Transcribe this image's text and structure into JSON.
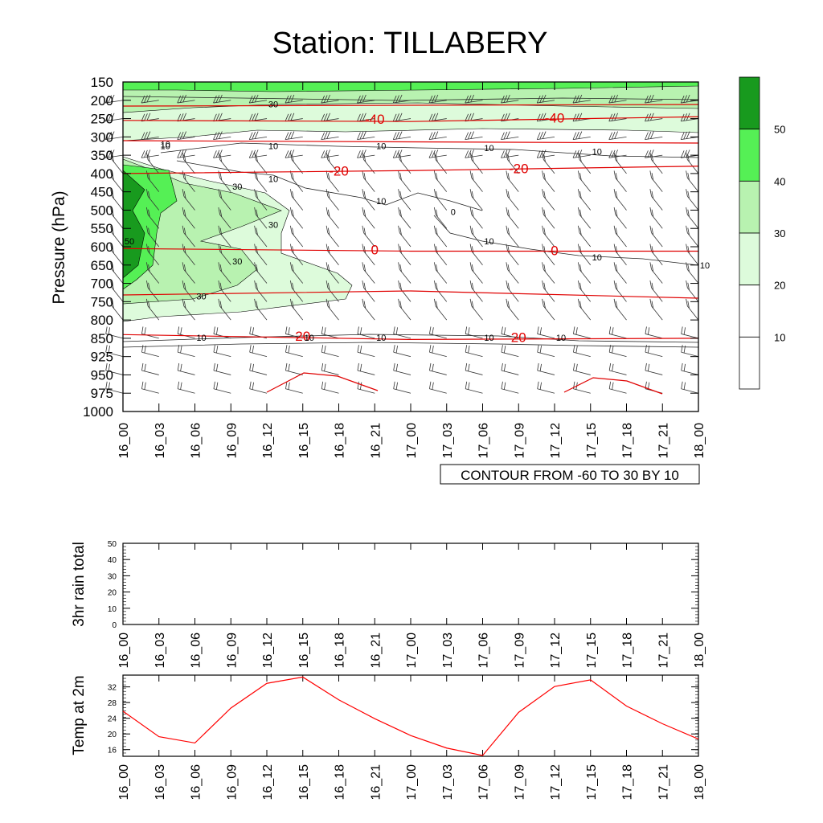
{
  "title": "Station: TILLABERY",
  "chart_data": [
    {
      "type": "heatmap",
      "panel": "cross-section",
      "ylabel": "Pressure (hPa)",
      "y_levels": [
        "150",
        "200",
        "250",
        "300",
        "350",
        "400",
        "450",
        "500",
        "550",
        "600",
        "650",
        "700",
        "750",
        "800",
        "850",
        "925",
        "950",
        "975",
        "1000"
      ],
      "x_categories": [
        "16_00",
        "16_03",
        "16_06",
        "16_09",
        "16_12",
        "16_15",
        "16_18",
        "16_21",
        "17_00",
        "17_03",
        "17_06",
        "17_09",
        "17_12",
        "17_15",
        "17_18",
        "17_21",
        "18_00"
      ],
      "contour_info": "CONTOUR FROM -60 TO 30 BY 10",
      "fill_colorbar": {
        "labels": [
          "10",
          "20",
          "30",
          "40",
          "50"
        ],
        "colors": [
          "#ffffff",
          "#ffffff",
          "#ddfbdb",
          "#b8f2b0",
          "#55f055",
          "#189a1e"
        ]
      },
      "shaded_contour_labels": [
        {
          "text": "30",
          "x": "16_12",
          "p": 210
        },
        {
          "text": "10",
          "x": "16_03",
          "p": 320
        },
        {
          "text": "10",
          "x": "16_03",
          "p": 325
        },
        {
          "text": "10",
          "x": "16_12",
          "p": 325
        },
        {
          "text": "10",
          "x": "16_21",
          "p": 325
        },
        {
          "text": "10",
          "x": "17_06",
          "p": 330
        },
        {
          "text": "10",
          "x": "17_15",
          "p": 340
        },
        {
          "text": "10",
          "x": "16_12",
          "p": 415
        },
        {
          "text": "30",
          "x": "16_09",
          "p": 435
        },
        {
          "text": "10",
          "x": "16_21",
          "p": 475
        },
        {
          "text": "0",
          "x": "17_03",
          "p": 505
        },
        {
          "text": "30",
          "x": "16_12",
          "p": 540
        },
        {
          "text": "50",
          "x": "16_00",
          "p": 585
        },
        {
          "text": "10",
          "x": "17_06",
          "p": 585
        },
        {
          "text": "30",
          "x": "16_09",
          "p": 640
        },
        {
          "text": "10",
          "x": "17_15",
          "p": 628
        },
        {
          "text": "10",
          "x": "18_00",
          "p": 650
        },
        {
          "text": "30",
          "x": "16_06",
          "p": 735
        },
        {
          "text": "10",
          "x": "16_06",
          "p": 848
        },
        {
          "text": "10",
          "x": "16_15",
          "p": 848
        },
        {
          "text": "10",
          "x": "16_21",
          "p": 848
        },
        {
          "text": "10",
          "x": "17_06",
          "p": 848
        },
        {
          "text": "10",
          "x": "17_12",
          "p": 848
        }
      ],
      "temperature_contours": [
        {
          "label": "-40",
          "points": [
            [
              0,
              255
            ],
            [
              8,
              258
            ],
            [
              16,
              245
            ]
          ],
          "label_positions": [
            "16_21",
            "17_12"
          ]
        },
        {
          "label": "-20",
          "points": [
            [
              0,
              400
            ],
            [
              8,
              392
            ],
            [
              16,
              380
            ]
          ],
          "label_positions": [
            "16_18",
            "17_09"
          ]
        },
        {
          "label": "0",
          "points": [
            [
              0,
              605
            ],
            [
              8,
              612
            ],
            [
              16,
              612
            ]
          ],
          "label_positions": [
            "16_21",
            "17_12"
          ]
        },
        {
          "label": "20",
          "points": [
            [
              0,
              840
            ],
            [
              8,
              855
            ],
            [
              16,
              850
            ]
          ],
          "label_positions": [
            "16_15",
            "17_09"
          ]
        }
      ]
    },
    {
      "type": "line",
      "panel": "rain",
      "ylabel": "3hr rain total",
      "yticks": [
        "0",
        "10",
        "20",
        "30",
        "40",
        "50"
      ],
      "ylim": [
        0,
        50
      ],
      "categories": [
        "16_00",
        "16_03",
        "16_06",
        "16_09",
        "16_12",
        "16_15",
        "16_18",
        "16_21",
        "17_00",
        "17_03",
        "17_06",
        "17_09",
        "17_12",
        "17_15",
        "17_18",
        "17_21",
        "18_00"
      ],
      "values": [
        0,
        0,
        0,
        0,
        0,
        0,
        0,
        0,
        0,
        0,
        0,
        0,
        0,
        0,
        0,
        0,
        0
      ]
    },
    {
      "type": "line",
      "panel": "temperature",
      "ylabel": "Temp at 2m",
      "yticks": [
        "16",
        "20",
        "24",
        "28",
        "32"
      ],
      "ylim": [
        14.3,
        35
      ],
      "categories": [
        "16_00",
        "16_03",
        "16_06",
        "16_09",
        "16_12",
        "16_15",
        "16_18",
        "16_21",
        "17_00",
        "17_03",
        "17_06",
        "17_09",
        "17_12",
        "17_15",
        "17_18",
        "17_21",
        "18_00"
      ],
      "values": [
        25.8,
        19.3,
        17.7,
        26.6,
        32.9,
        34.5,
        28.7,
        23.9,
        19.6,
        16.4,
        14.5,
        25.5,
        32.1,
        33.8,
        27.1,
        22.6,
        18.7
      ],
      "color": "#ff0000"
    }
  ]
}
